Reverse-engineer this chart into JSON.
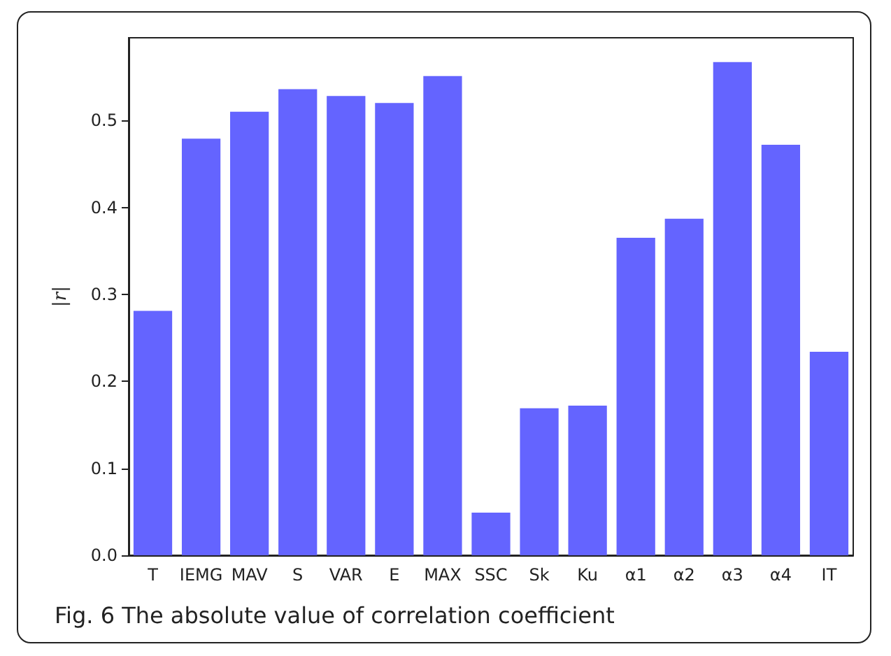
{
  "chart_data": {
    "type": "bar",
    "title": "Fig. 6 The absolute value of correlation coefficient",
    "ylabel": "|r|",
    "categories": [
      "T",
      "IEMG",
      "MAV",
      "S",
      "VAR",
      "E",
      "MAX",
      "SSC",
      "Sk",
      "Ku",
      "α1",
      "α2",
      "α3",
      "α4",
      "IT"
    ],
    "values": [
      0.281,
      0.479,
      0.51,
      0.536,
      0.528,
      0.52,
      0.551,
      0.049,
      0.169,
      0.172,
      0.365,
      0.387,
      0.567,
      0.472,
      0.234
    ],
    "color": "#6464ff",
    "ylim": [
      0,
      0.595
    ],
    "yticks": [
      {
        "value": 0,
        "label": "0.0"
      },
      0.1,
      0.2,
      0.3,
      0.4,
      0.5
    ],
    "grid": false
  }
}
